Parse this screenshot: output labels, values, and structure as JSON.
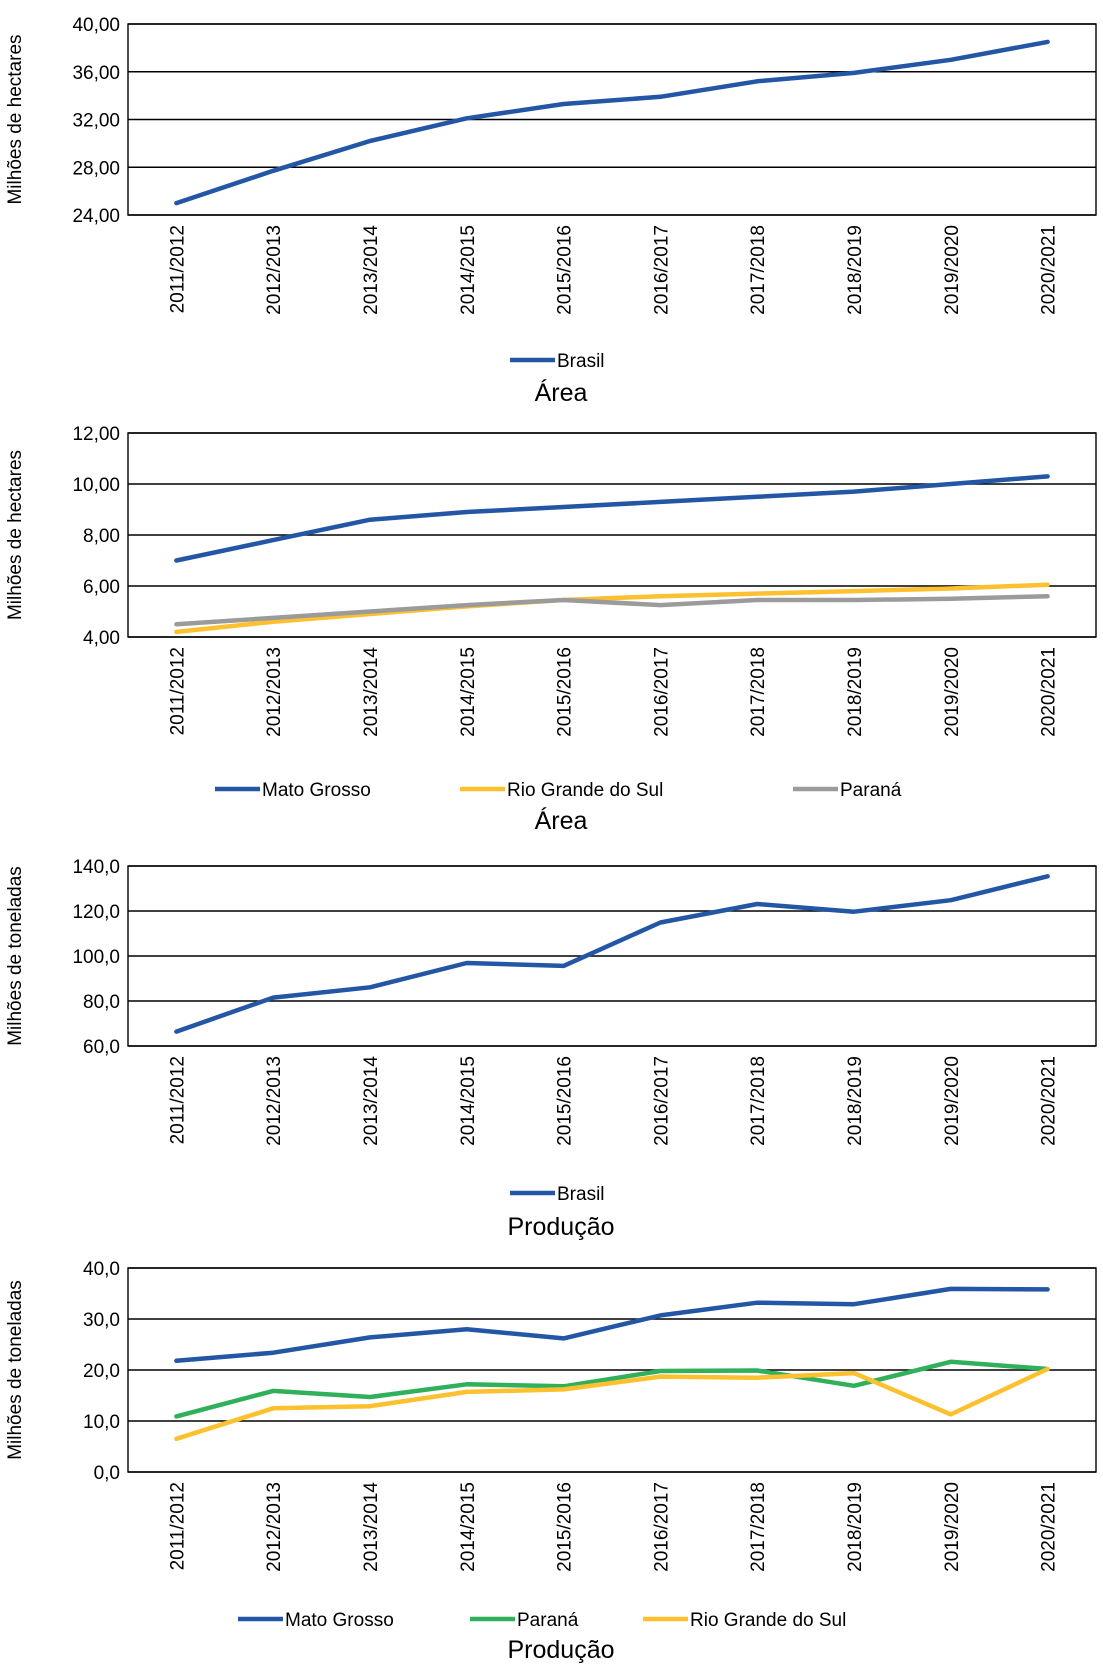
{
  "colors": {
    "blue": "#2456A6",
    "yellow": "#FDC02F",
    "gray": "#9B9B9B",
    "green": "#30B05A",
    "grid": "#000000"
  },
  "chart_data": [
    {
      "type": "line",
      "title": "Área",
      "ylabel": "Milhões de hectares",
      "ylim": [
        24,
        40
      ],
      "yticks": [
        "24,00",
        "28,00",
        "32,00",
        "36,00",
        "40,00"
      ],
      "categories": [
        "2011/2012",
        "2012/2013",
        "2013/2014",
        "2014/2015",
        "2015/2016",
        "2016/2017",
        "2017/2018",
        "2018/2019",
        "2019/2020",
        "2020/2021"
      ],
      "series": [
        {
          "name": "Brasil",
          "color": "#2456A6",
          "values": [
            25.0,
            27.7,
            30.2,
            32.1,
            33.3,
            33.9,
            35.2,
            35.9,
            37.0,
            38.5
          ]
        }
      ]
    },
    {
      "type": "line",
      "title": "Área",
      "ylabel": "Milhões de hectares",
      "ylim": [
        4,
        12
      ],
      "yticks": [
        "4,00",
        "6,00",
        "8,00",
        "10,00",
        "12,00"
      ],
      "categories": [
        "2011/2012",
        "2012/2013",
        "2013/2014",
        "2014/2015",
        "2015/2016",
        "2016/2017",
        "2017/2018",
        "2018/2019",
        "2019/2020",
        "2020/2021"
      ],
      "series": [
        {
          "name": "Mato Grosso",
          "color": "#2456A6",
          "values": [
            7.0,
            7.8,
            8.6,
            8.9,
            9.1,
            9.3,
            9.5,
            9.7,
            10.0,
            10.3
          ]
        },
        {
          "name": "Rio Grande do Sul",
          "color": "#FDC02F",
          "values": [
            4.2,
            4.6,
            4.9,
            5.2,
            5.45,
            5.6,
            5.7,
            5.8,
            5.9,
            6.05
          ]
        },
        {
          "name": "Paraná",
          "color": "#9B9B9B",
          "values": [
            4.5,
            4.75,
            5.0,
            5.25,
            5.45,
            5.25,
            5.45,
            5.45,
            5.5,
            5.6
          ]
        }
      ]
    },
    {
      "type": "line",
      "title": "Produção",
      "ylabel": "Milhões de toneladas",
      "ylim": [
        60,
        140
      ],
      "yticks": [
        "60,0",
        "80,0",
        "100,0",
        "120,0",
        "140,0"
      ],
      "categories": [
        "2011/2012",
        "2012/2013",
        "2013/2014",
        "2014/2015",
        "2015/2016",
        "2016/2017",
        "2017/2018",
        "2018/2019",
        "2019/2020",
        "2020/2021"
      ],
      "series": [
        {
          "name": "Brasil",
          "color": "#2456A6",
          "values": [
            66.4,
            81.5,
            86.1,
            96.9,
            95.6,
            114.9,
            123.1,
            119.7,
            124.8,
            135.4
          ]
        }
      ]
    },
    {
      "type": "line",
      "title": "Produção",
      "ylabel": "Milhões de toneladas",
      "ylim": [
        0,
        40
      ],
      "yticks": [
        "0,0",
        "10,0",
        "20,0",
        "30,0",
        "40,0"
      ],
      "categories": [
        "2011/2012",
        "2012/2013",
        "2013/2014",
        "2014/2015",
        "2015/2016",
        "2016/2017",
        "2017/2018",
        "2018/2019",
        "2019/2020",
        "2020/2021"
      ],
      "series": [
        {
          "name": "Mato Grosso",
          "color": "#2456A6",
          "values": [
            21.8,
            23.4,
            26.4,
            28.0,
            26.2,
            30.7,
            33.2,
            32.9,
            35.9,
            35.8
          ]
        },
        {
          "name": "Paraná",
          "color": "#30B05A",
          "values": [
            10.9,
            15.9,
            14.7,
            17.2,
            16.8,
            19.8,
            19.9,
            16.9,
            21.6,
            20.2
          ]
        },
        {
          "name": "Rio Grande do Sul",
          "color": "#FDC02F",
          "values": [
            6.5,
            12.5,
            12.9,
            15.7,
            16.2,
            18.7,
            18.5,
            19.4,
            11.3,
            20.2
          ]
        }
      ]
    }
  ]
}
